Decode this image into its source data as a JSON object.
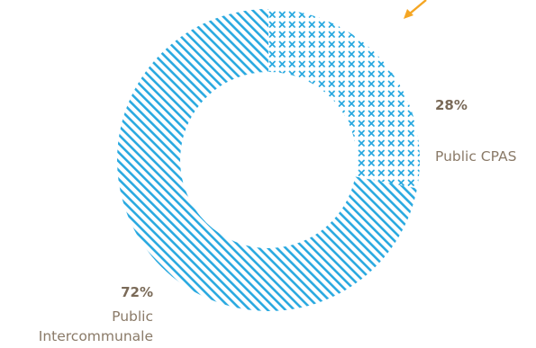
{
  "chart_data": {
    "type": "pie",
    "donut": true,
    "series": [
      {
        "name": "Public CPAS",
        "value": 28,
        "percent_label": "28%",
        "label_lines": [
          "Public CPAS"
        ],
        "pattern": "crosses"
      },
      {
        "name": "Public Intercommunale",
        "value": 72,
        "percent_label": "72%",
        "label_lines": [
          "Public",
          "Intercommunale"
        ],
        "pattern": "diagonal-stripes"
      }
    ],
    "colors": {
      "accent": "#29a9e0",
      "arrow": "#f5a623",
      "percent_text": "#7a6a58",
      "label_text": "#8a7a68"
    }
  }
}
